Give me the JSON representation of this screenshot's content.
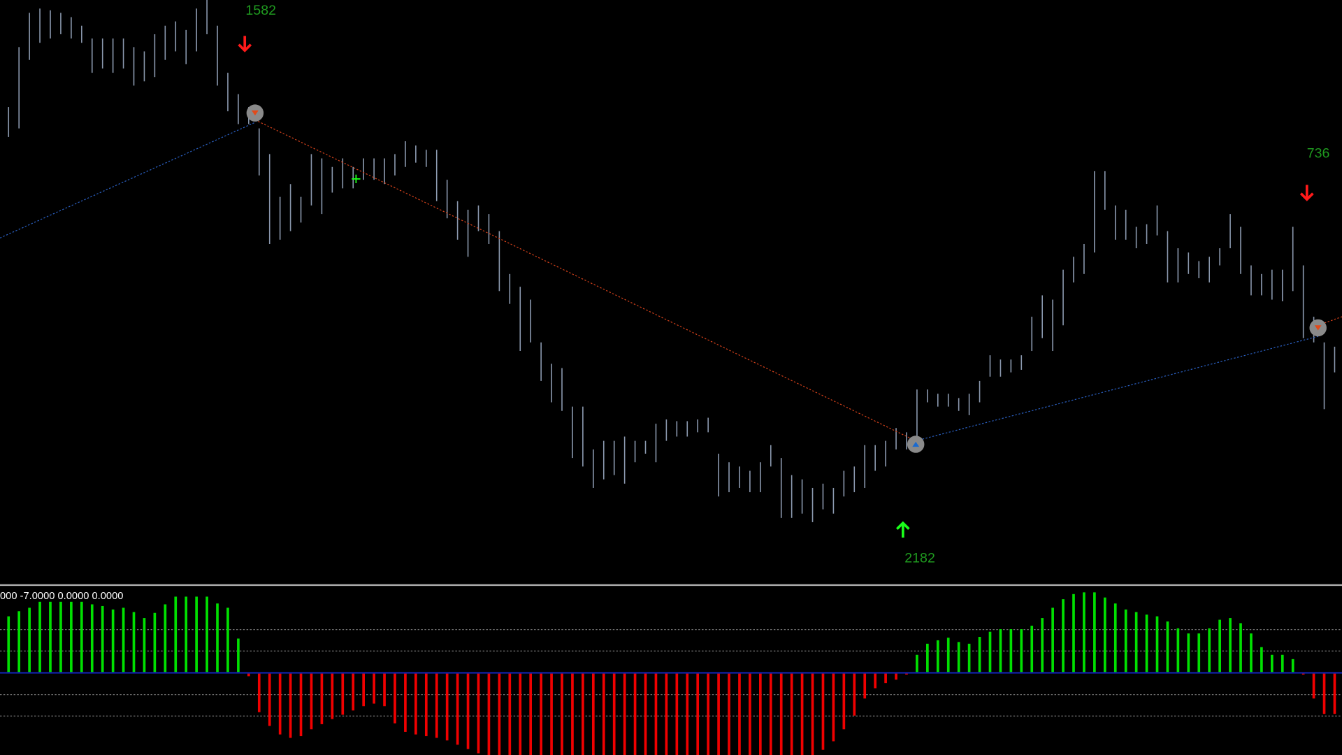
{
  "price_chart": {
    "bar_color": "#8c9ab0",
    "highs": [
      555,
      625,
      665,
      670,
      668,
      665,
      660,
      650,
      635,
      635,
      635,
      635,
      625,
      620,
      640,
      650,
      655,
      645,
      670,
      680,
      650,
      595,
      570,
      555,
      530,
      500,
      450,
      465,
      450,
      500,
      495,
      485,
      495,
      485,
      495,
      495,
      495,
      500,
      515,
      510,
      505,
      505,
      470,
      445,
      435,
      440,
      430,
      410,
      360,
      345,
      330,
      280,
      255,
      250,
      205,
      205,
      155,
      165,
      165,
      170,
      165,
      165,
      185,
      190,
      188,
      188,
      190,
      192,
      150,
      140,
      135,
      130,
      140,
      160,
      145,
      125,
      120,
      110,
      115,
      110,
      130,
      135,
      160,
      160,
      165,
      180,
      175,
      225,
      225,
      220,
      220,
      215,
      220,
      235,
      265,
      260,
      260,
      265,
      310,
      335,
      330,
      365,
      380,
      395,
      480,
      480,
      440,
      435,
      415,
      418,
      440,
      410,
      390,
      385,
      375,
      380,
      390,
      430,
      415,
      370,
      360,
      365,
      365,
      415,
      370,
      310,
      280,
      275
    ],
    "lows": [
      520,
      530,
      610,
      630,
      635,
      640,
      635,
      630,
      595,
      600,
      595,
      600,
      580,
      585,
      590,
      610,
      620,
      605,
      620,
      640,
      580,
      550,
      535,
      535,
      475,
      395,
      400,
      410,
      420,
      440,
      430,
      455,
      460,
      460,
      470,
      470,
      465,
      475,
      485,
      490,
      485,
      445,
      425,
      400,
      380,
      410,
      395,
      340,
      325,
      270,
      280,
      235,
      210,
      200,
      145,
      135,
      110,
      120,
      125,
      115,
      140,
      150,
      140,
      165,
      170,
      170,
      175,
      175,
      100,
      105,
      110,
      105,
      105,
      135,
      75,
      75,
      80,
      70,
      85,
      80,
      100,
      105,
      110,
      130,
      135,
      155,
      155,
      160,
      210,
      205,
      205,
      200,
      195,
      210,
      240,
      240,
      245,
      248,
      270,
      285,
      270,
      300,
      350,
      360,
      385,
      435,
      400,
      400,
      390,
      395,
      405,
      350,
      350,
      360,
      355,
      350,
      370,
      390,
      360,
      335,
      335,
      330,
      328,
      340,
      285,
      280,
      202,
      245
    ],
    "signals": [
      {
        "label": "1582"
      },
      {
        "label": "736"
      },
      {
        "label": "2182"
      }
    ]
  },
  "indicator": {
    "header": "000 -7.0000 0.0000 0.0000",
    "up_color": "#00e000",
    "down_color": "#f00000",
    "values": [
      66,
      72,
      76,
      83,
      83,
      83,
      83,
      83,
      80,
      78,
      74,
      76,
      71,
      64,
      70,
      80,
      89,
      89,
      89,
      89,
      81,
      76,
      40,
      -4,
      -46,
      -62,
      -72,
      -76,
      -74,
      -66,
      -60,
      -54,
      -49,
      -44,
      -39,
      -36,
      -39,
      -59,
      -69,
      -72,
      -74,
      -76,
      -79,
      -84,
      -89,
      -94,
      -96,
      -96,
      -96,
      -96,
      -96,
      -96,
      -96,
      -96,
      -96,
      -96,
      -96,
      -96,
      -96,
      -96,
      -96,
      -96,
      -96,
      -96,
      -96,
      -96,
      -96,
      -96,
      -96,
      -96,
      -96,
      -96,
      -96,
      -96,
      -96,
      -96,
      -96,
      -96,
      -90,
      -80,
      -66,
      -50,
      -30,
      -18,
      -12,
      -8,
      -2,
      21,
      34,
      38,
      41,
      36,
      34,
      42,
      48,
      51,
      51,
      51,
      55,
      64,
      76,
      86,
      92,
      94,
      94,
      88,
      81,
      74,
      71,
      68,
      66,
      60,
      52,
      46,
      46,
      52,
      62,
      64,
      58,
      46,
      30,
      21,
      21,
      16,
      -2,
      -30,
      -48,
      -48
    ]
  }
}
